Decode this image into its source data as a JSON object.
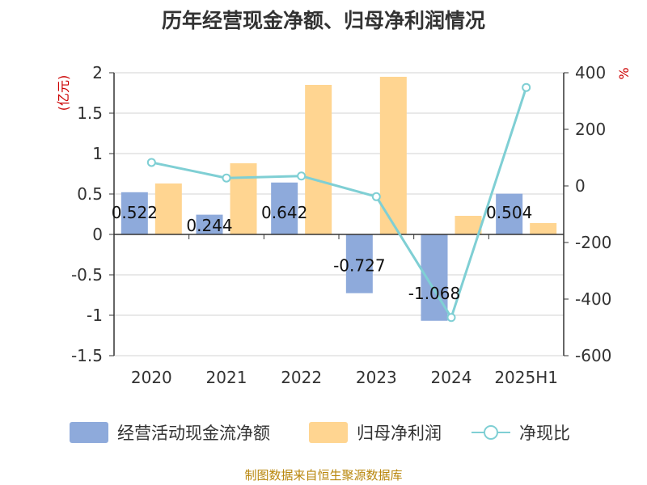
{
  "chart_data": {
    "type": "bar",
    "title": "历年经营现金净额、归母净利润情况",
    "categories": [
      "2020",
      "2021",
      "2022",
      "2023",
      "2024",
      "2025H1"
    ],
    "y_left": {
      "unit": "(亿元)",
      "ylim": [
        -1.5,
        2
      ],
      "ticks": [
        "-1.5",
        "-1",
        "-0.5",
        "0",
        "0.5",
        "1",
        "1.5",
        "2"
      ]
    },
    "y_right": {
      "unit": "%",
      "ylim": [
        -600,
        400
      ],
      "ticks": [
        "-600",
        "-400",
        "-200",
        "0",
        "200",
        "400"
      ]
    },
    "series": [
      {
        "name": "经营活动现金流净额",
        "type": "bar",
        "axis": "left",
        "color": "#8eaadb",
        "values": [
          0.522,
          0.244,
          0.642,
          -0.727,
          -1.068,
          0.504
        ],
        "labels": [
          "0.522",
          "0.244",
          "0.642",
          "-0.727",
          "-1.068",
          "0.504"
        ]
      },
      {
        "name": "归母净利润",
        "type": "bar",
        "axis": "left",
        "color": "#ffd591",
        "values": [
          0.63,
          0.88,
          1.85,
          1.95,
          0.23,
          0.14
        ]
      },
      {
        "name": "净现比",
        "type": "line",
        "axis": "right",
        "color": "#7fcfd4",
        "values": [
          83,
          28,
          35,
          -38,
          -465,
          348
        ]
      }
    ],
    "grid": true,
    "legend_position": "bottom"
  },
  "source_note": "制图数据来自恒生聚源数据库"
}
